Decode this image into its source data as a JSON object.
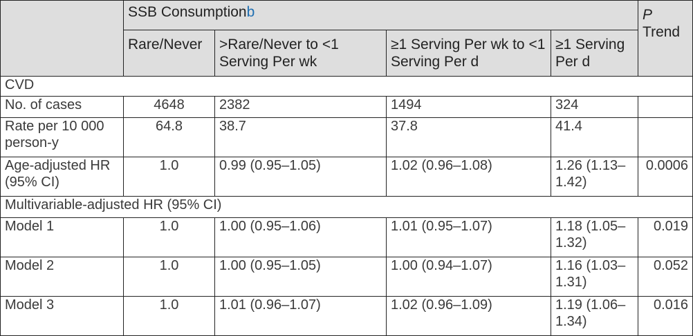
{
  "header": {
    "group_label": "SSB Consumption",
    "group_sup": "b",
    "p_trend_italic": "P",
    "p_trend_label": "Trend",
    "columns": [
      "Rare/Never",
      ">Rare/Never to <1 Serving Per wk",
      "≥1 Serving Per wk to <1 Serving Per d",
      "≥1 Serving Per d"
    ]
  },
  "sections": {
    "cvd": "CVD",
    "multivariable": "Multivariable-adjusted HR (95% CI)"
  },
  "rows": [
    {
      "label": "No. of cases",
      "values": [
        "4648",
        "2382",
        "1494",
        "324"
      ],
      "p": ""
    },
    {
      "label": "Rate per 10 000 person-y",
      "values": [
        "64.8",
        "38.7",
        "37.8",
        "41.4"
      ],
      "p": ""
    },
    {
      "label": "Age-adjusted HR (95% CI)",
      "values": [
        "1.0",
        "0.99 (0.95–1.05)",
        "1.02 (0.96–1.08)",
        "1.26 (1.13–1.42)"
      ],
      "p": "0.0006"
    },
    {
      "label": "Model 1",
      "values": [
        "1.0",
        "1.00 (0.95–1.06)",
        "1.01 (0.95–1.07)",
        "1.18 (1.05–1.32)"
      ],
      "p": "0.019"
    },
    {
      "label": "Model 2",
      "values": [
        "1.0",
        "1.00 (0.95–1.05)",
        "1.00 (0.94–1.07)",
        "1.16 (1.03–1.31)"
      ],
      "p": "0.052"
    },
    {
      "label": "Model 3",
      "values": [
        "1.0",
        "1.01 (0.96–1.07)",
        "1.02 (0.96–1.09)",
        "1.19 (1.06–1.34)"
      ],
      "p": "0.016"
    }
  ],
  "colors": {
    "header_bg": "#dedede",
    "accent": "#1f6fb2",
    "border": "#222222"
  }
}
